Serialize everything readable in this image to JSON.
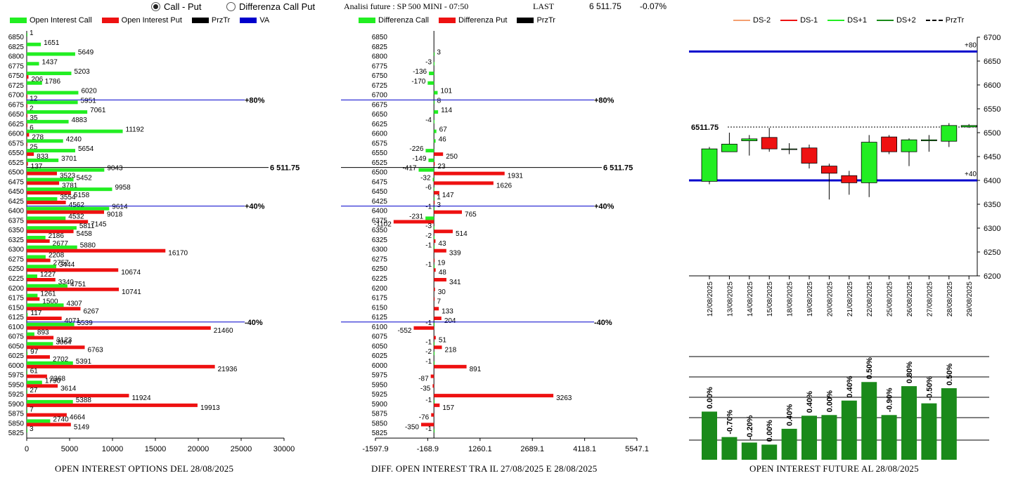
{
  "header": {
    "radio_call_put": "Call - Put",
    "radio_diff": "Differenza Call Put",
    "analysis": "Analisi future : SP 500 MINI - 07:50",
    "last_label": "LAST",
    "last_value": "6 511.75",
    "change": "-0.07%"
  },
  "colors": {
    "call": "#22ee22",
    "put": "#ee1111",
    "level": "#0000cc",
    "price": "#000000",
    "volume": "#1a8a1a",
    "up": "#22ee22",
    "down": "#ee1111"
  },
  "legend_oi": [
    {
      "label": "Open Interest Call",
      "color": "#22ee22",
      "kind": "box"
    },
    {
      "label": "Open Interest Put",
      "color": "#ee1111",
      "kind": "box"
    },
    {
      "label": "PrzTr",
      "color": "#000000",
      "kind": "box"
    },
    {
      "label": "VA",
      "color": "#0000cc",
      "kind": "box"
    }
  ],
  "legend_diff": [
    {
      "label": "Differenza Call",
      "color": "#22ee22",
      "kind": "box"
    },
    {
      "label": "Differenza Put",
      "color": "#ee1111",
      "kind": "box"
    },
    {
      "label": "PrzTr",
      "color": "#000000",
      "kind": "box"
    }
  ],
  "legend_fut": [
    {
      "label": "DS-2",
      "color": "#f4a070",
      "kind": "line"
    },
    {
      "label": "DS-1",
      "color": "#ee1111",
      "kind": "line"
    },
    {
      "label": "DS+1",
      "color": "#22ee22",
      "kind": "line"
    },
    {
      "label": "DS+2",
      "color": "#1a8a1a",
      "kind": "line"
    },
    {
      "label": "PrzTr",
      "color": "#000000",
      "kind": "dash"
    }
  ],
  "captions": {
    "oi": "OPEN INTEREST OPTIONS DEL 28/08/2025",
    "diff": "DIFF. OPEN INTEREST TRA IL 27/08/2025 E 28/08/2025",
    "fut": "OPEN INTEREST FUTURE AL 28/08/2025"
  },
  "chart_data": [
    {
      "id": "oi",
      "type": "bar",
      "orientation": "horizontal",
      "categories": [
        6850,
        6825,
        6800,
        6775,
        6750,
        6725,
        6700,
        6675,
        6650,
        6625,
        6600,
        6575,
        6550,
        6525,
        6500,
        6475,
        6450,
        6425,
        6400,
        6375,
        6350,
        6325,
        6300,
        6275,
        6250,
        6225,
        6200,
        6175,
        6150,
        6125,
        6100,
        6075,
        6050,
        6025,
        6000,
        5975,
        5950,
        5925,
        5900,
        5875,
        5850,
        5825
      ],
      "series": [
        {
          "name": "Open Interest Call",
          "values": [
            1,
            1651,
            5649,
            1437,
            5203,
            1786,
            6020,
            5951,
            7061,
            4883,
            11192,
            4240,
            5654,
            3701,
            9043,
            5452,
            9958,
            3554,
            9614,
            4532,
            5811,
            2186,
            5880,
            2208,
            3444,
            1227,
            4751,
            1261,
            4307,
            117,
            5539,
            893,
            3064,
            97,
            5391,
            61,
            1790,
            27,
            5388,
            7,
            2740,
            3
          ]
        },
        {
          "name": "Open Interest Put",
          "values": [
            null,
            null,
            null,
            null,
            206,
            null,
            12,
            2,
            35,
            6,
            278,
            25,
            833,
            137,
            3523,
            3781,
            5158,
            4562,
            9018,
            7145,
            5458,
            2677,
            16170,
            2757,
            10674,
            3340,
            10741,
            1500,
            6267,
            4071,
            21460,
            3123,
            6763,
            2702,
            21936,
            2368,
            3614,
            11924,
            19913,
            4664,
            5149,
            null
          ]
        }
      ],
      "price_level": {
        "value": 6500,
        "label": "6 511.75"
      },
      "reference_levels": [
        {
          "strike": 6675,
          "label": "+80%"
        },
        {
          "strike": 6400,
          "label": "+40%"
        },
        {
          "strike": 6100,
          "label": "-40%"
        }
      ],
      "x_ticks": [
        0,
        5000,
        10000,
        15000,
        20000,
        25000,
        30000
      ],
      "xlim": [
        0,
        30000
      ]
    },
    {
      "id": "diff",
      "type": "bar",
      "orientation": "horizontal",
      "categories": [
        6850,
        6825,
        6800,
        6775,
        6750,
        6725,
        6700,
        6675,
        6650,
        6625,
        6600,
        6575,
        6550,
        6525,
        6500,
        6475,
        6450,
        6425,
        6400,
        6375,
        6350,
        6325,
        6300,
        6275,
        6250,
        6225,
        6200,
        6175,
        6150,
        6125,
        6100,
        6075,
        6050,
        6025,
        6000,
        5975,
        5950,
        5925,
        5900,
        5875,
        5850,
        5825
      ],
      "series": [
        {
          "name": "Differenza Call",
          "values": [
            null,
            null,
            3,
            -3,
            -136,
            -170,
            101,
            8,
            114,
            -4,
            67,
            46,
            -226,
            -149,
            -417,
            -32,
            -6,
            1,
            -1,
            -231,
            -3,
            -2,
            -1,
            null,
            -1,
            null,
            null,
            null,
            null,
            null,
            -1,
            null,
            -1,
            -2,
            -1,
            null,
            null,
            null,
            -1,
            null,
            null,
            -1
          ]
        },
        {
          "name": "Differenza Put",
          "values": [
            null,
            null,
            null,
            null,
            null,
            null,
            null,
            null,
            null,
            null,
            null,
            null,
            250,
            23,
            1931,
            1626,
            147,
            3,
            765,
            -1102,
            514,
            43,
            339,
            19,
            48,
            341,
            30,
            7,
            133,
            204,
            -552,
            51,
            218,
            null,
            891,
            -87,
            -35,
            3263,
            157,
            -76,
            -350,
            null
          ]
        }
      ],
      "price_level": {
        "value": 6500,
        "label": "6 511.75"
      },
      "reference_levels": [
        {
          "strike": 6675,
          "label": "+80%"
        },
        {
          "strike": 6400,
          "label": "+40%"
        },
        {
          "strike": 6100,
          "label": "-40%"
        }
      ],
      "x_ticks": [
        "-1597.9",
        "-168.9",
        "1260.1",
        "2689.1",
        "4118.1",
        "5547.1"
      ],
      "xlim": [
        -1597.9,
        5547.1
      ]
    },
    {
      "id": "future",
      "type": "candlestick",
      "x": [
        "12/08/2025",
        "13/08/2025",
        "14/08/2025",
        "15/08/2025",
        "18/08/2025",
        "19/08/2025",
        "20/08/2025",
        "21/08/2025",
        "22/08/2025",
        "25/08/2025",
        "26/08/2025",
        "27/08/2025",
        "28/08/2025",
        "29/08/2025"
      ],
      "open": [
        6398,
        6460,
        6483,
        6490,
        6466,
        6468,
        6430,
        6410,
        6395,
        6491,
        6460,
        6483,
        6482,
        6512
      ],
      "close": [
        6466,
        6476,
        6487,
        6466,
        6466,
        6436,
        6415,
        6395,
        6480,
        6460,
        6485,
        6485,
        6515,
        6515
      ],
      "high": [
        6470,
        6500,
        6495,
        6510,
        6478,
        6475,
        6435,
        6420,
        6495,
        6495,
        6488,
        6495,
        6520,
        6518
      ],
      "low": [
        6392,
        6460,
        6452,
        6460,
        6455,
        6425,
        6360,
        6370,
        6365,
        6455,
        6430,
        6460,
        6470,
        6510
      ],
      "ylim": [
        6200,
        6700
      ],
      "y_ticks": [
        6700,
        6650,
        6600,
        6550,
        6500,
        6450,
        6400,
        6350,
        6300,
        6250,
        6200
      ],
      "last_price": {
        "value": 6511.75,
        "label": "6511.75"
      },
      "levels": [
        {
          "value": 6670,
          "label": "+80"
        },
        {
          "value": 6400,
          "label": "+40"
        }
      ]
    },
    {
      "id": "future_oi_change",
      "type": "bar",
      "categories": [
        "12/08/2025",
        "13/08/2025",
        "14/08/2025",
        "15/08/2025",
        "18/08/2025",
        "19/08/2025",
        "20/08/2025",
        "21/08/2025",
        "22/08/2025",
        "25/08/2025",
        "26/08/2025",
        "27/08/2025",
        "28/08/2025"
      ],
      "labels": [
        "0.00%",
        "-0.70%",
        "-0.20%",
        "0.00%",
        "0.40%",
        "0.40%",
        "0.00%",
        "0.40%",
        "0.50%",
        "-0.90%",
        "0.80%",
        "-0.50%",
        "0.50%"
      ],
      "values": [
        70,
        33,
        25,
        22,
        45,
        64,
        65,
        86,
        113,
        65,
        107,
        82,
        104
      ],
      "ylim": [
        0,
        150
      ]
    }
  ]
}
